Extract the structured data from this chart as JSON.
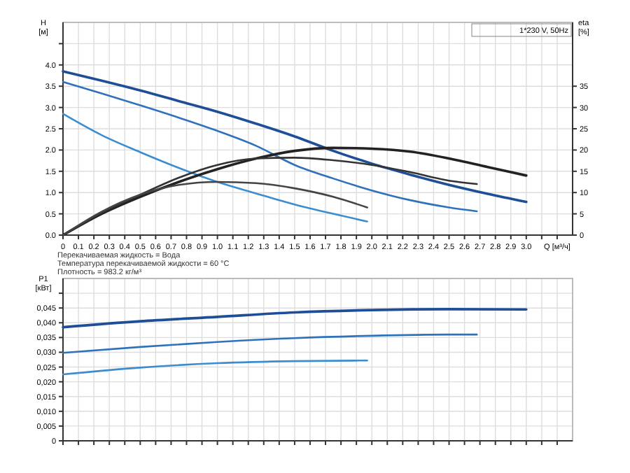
{
  "chart_data": [
    {
      "type": "line",
      "xlabel": "Q [м³/ч]",
      "ylabel": "H [м]",
      "y2label": "eta [%]",
      "xlim": [
        0,
        3.3
      ],
      "xticks": [
        {
          "value": 0,
          "label": "0"
        },
        0.1,
        0.2,
        0.3,
        0.4,
        0.5,
        0.6,
        0.7,
        0.8,
        0.9,
        {
          "value": 1,
          "label": "1.0"
        },
        1.1,
        1.2,
        1.3,
        1.4,
        1.5,
        1.6,
        1.7,
        1.8,
        1.9,
        {
          "value": 2,
          "label": "2.0"
        },
        2.1,
        2.2,
        2.3,
        2.4,
        2.5,
        2.6,
        2.7,
        2.8,
        2.9,
        {
          "value": 3,
          "label": "3.0"
        },
        {
          "value": 3.1,
          "label": null
        },
        {
          "value": 3.2,
          "label": null
        }
      ],
      "ylim": [
        0,
        5
      ],
      "yticks": [
        {
          "value": 0,
          "label": "0.0"
        },
        0.5,
        {
          "value": 1,
          "label": "1.0"
        },
        1.5,
        {
          "value": 2,
          "label": "2.0"
        },
        2.5,
        {
          "value": 3,
          "label": "3.0"
        },
        3.5,
        {
          "value": 4,
          "label": "4.0"
        },
        {
          "value": 4.5,
          "label": null
        }
      ],
      "y2lim": [
        0,
        50
      ],
      "y2ticks": [
        0,
        5,
        10,
        15,
        20,
        25,
        30,
        35
      ],
      "grid": true,
      "annotations": [
        "1*230 V, 50Hz",
        "Перекачиваемая жидкость = Вода",
        "Температура перекачиваемой жидкости = 60 °C",
        "Плотность = 983.2 кг/м³"
      ],
      "series": [
        {
          "color": "#1f4e99",
          "x": [
            0,
            0.25,
            0.5,
            0.75,
            1,
            1.25,
            1.5,
            1.75,
            2,
            2.25,
            2.5,
            2.75,
            3
          ],
          "values": [
            3.85,
            3.63,
            3.4,
            3.15,
            2.9,
            2.62,
            2.32,
            1.98,
            1.68,
            1.42,
            1.18,
            0.97,
            0.78
          ]
        },
        {
          "color": "#2f72bb",
          "x": [
            0,
            0.25,
            0.5,
            0.75,
            1,
            1.25,
            1.5,
            1.75,
            2,
            2.25,
            2.5,
            2.68
          ],
          "values": [
            3.6,
            3.33,
            3.05,
            2.76,
            2.45,
            2.1,
            1.65,
            1.33,
            1.05,
            0.82,
            0.65,
            0.56
          ]
        },
        {
          "color": "#3c8dd0",
          "x": [
            0,
            0.25,
            0.5,
            0.75,
            1,
            1.25,
            1.5,
            1.75,
            1.97
          ],
          "values": [
            2.85,
            2.35,
            1.95,
            1.58,
            1.25,
            0.98,
            0.72,
            0.5,
            0.32
          ]
        },
        {
          "color": "#222222",
          "axis": "y2",
          "x": [
            0,
            0.25,
            0.5,
            0.75,
            1,
            1.25,
            1.5,
            1.75,
            2,
            2.25,
            2.5,
            2.75,
            3
          ],
          "values": [
            0,
            5,
            9,
            12.5,
            15.5,
            18,
            19.8,
            20.5,
            20.3,
            19.6,
            18,
            16,
            14
          ]
        },
        {
          "color": "#333333",
          "axis": "y2",
          "x": [
            0,
            0.25,
            0.5,
            0.75,
            1,
            1.25,
            1.5,
            1.75,
            2,
            2.25,
            2.5,
            2.68
          ],
          "values": [
            0,
            5.2,
            9.5,
            13.5,
            16.5,
            18,
            18.2,
            17.6,
            16.5,
            14.8,
            12.8,
            12
          ]
        },
        {
          "color": "#444444",
          "axis": "y2",
          "x": [
            0,
            0.25,
            0.5,
            0.75,
            1,
            1.25,
            1.5,
            1.75,
            1.97
          ],
          "values": [
            0,
            5.5,
            9.5,
            11.8,
            12.5,
            12.2,
            11,
            9,
            6.5
          ]
        }
      ]
    },
    {
      "type": "line",
      "ylabel": "P1 [кВт]",
      "xlim": [
        0,
        3.3
      ],
      "tick_labels": "y",
      "grid": true,
      "xticks": [
        0,
        0.1,
        0.2,
        0.3,
        0.4,
        0.5,
        0.6,
        0.7,
        0.8,
        0.9,
        1,
        1.1,
        1.2,
        1.3,
        1.4,
        1.5,
        1.6,
        1.7,
        1.8,
        1.9,
        2,
        2.1,
        2.2,
        2.3,
        2.4,
        2.5,
        2.6,
        2.7,
        2.8,
        2.9,
        3,
        3.1,
        3.2
      ],
      "ylim": [
        0,
        0.055
      ],
      "yticks": [
        {
          "value": 0,
          "label": "0"
        },
        {
          "value": 0.005,
          "label": "0,005"
        },
        {
          "value": 0.01,
          "label": "0,010"
        },
        {
          "value": 0.015,
          "label": "0,015"
        },
        {
          "value": 0.02,
          "label": "0,020"
        },
        {
          "value": 0.025,
          "label": "0,025"
        },
        {
          "value": 0.03,
          "label": "0,030"
        },
        {
          "value": 0.035,
          "label": "0,035"
        },
        {
          "value": 0.04,
          "label": "0,040"
        },
        {
          "value": 0.045,
          "label": "0,045"
        },
        {
          "value": 0.05,
          "label": null
        }
      ],
      "series": [
        {
          "color": "#1f4e99",
          "x": [
            0,
            0.5,
            1,
            1.5,
            2,
            2.5,
            3
          ],
          "values": [
            0.0385,
            0.0405,
            0.042,
            0.0435,
            0.0443,
            0.0446,
            0.0445
          ]
        },
        {
          "color": "#2f72bb",
          "x": [
            0,
            0.5,
            1,
            1.5,
            2,
            2.5,
            2.68
          ],
          "values": [
            0.0298,
            0.0318,
            0.0335,
            0.0348,
            0.0356,
            0.036,
            0.036
          ]
        },
        {
          "color": "#3c8dd0",
          "x": [
            0,
            0.5,
            1,
            1.5,
            1.97
          ],
          "values": [
            0.0225,
            0.0248,
            0.0263,
            0.027,
            0.0272
          ]
        }
      ]
    }
  ]
}
